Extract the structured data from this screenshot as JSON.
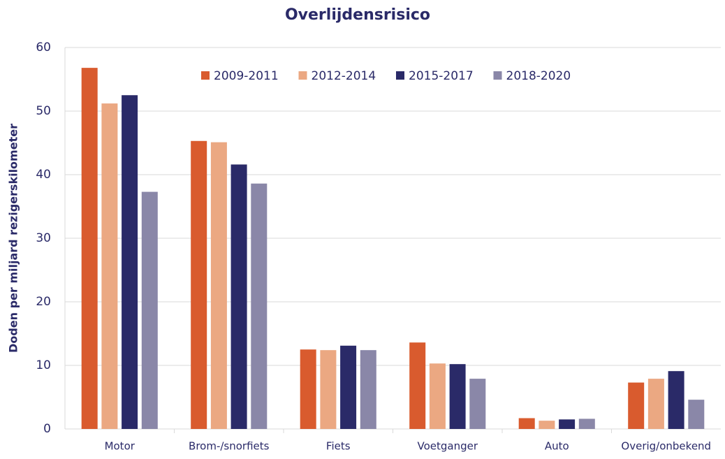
{
  "chart_data": {
    "type": "bar",
    "title": "Overlijdensrisico",
    "y_label": "Doden per miljard rezigerskilometer",
    "categories": [
      "Motor",
      "Brom-/snorfiets",
      "Fiets",
      "Voetganger",
      "Auto",
      "Overig/onbekend"
    ],
    "series": [
      {
        "name": "2009-2011",
        "color": "#d95b2e",
        "values": [
          56.8,
          45.3,
          12.5,
          13.6,
          1.7,
          7.3
        ]
      },
      {
        "name": "2012-2014",
        "color": "#eba882",
        "values": [
          51.2,
          45.1,
          12.4,
          10.3,
          1.3,
          7.9
        ]
      },
      {
        "name": "2015-2017",
        "color": "#2a2a68",
        "values": [
          52.5,
          41.6,
          13.1,
          10.2,
          1.5,
          9.1
        ]
      },
      {
        "name": "2018-2020",
        "color": "#8a87a8",
        "values": [
          37.3,
          38.6,
          12.4,
          7.9,
          1.6,
          4.6
        ]
      }
    ],
    "ylim": [
      0,
      60
    ],
    "yticks": [
      0,
      10,
      20,
      30,
      40,
      50,
      60
    ],
    "grid": true,
    "legend": "top"
  }
}
